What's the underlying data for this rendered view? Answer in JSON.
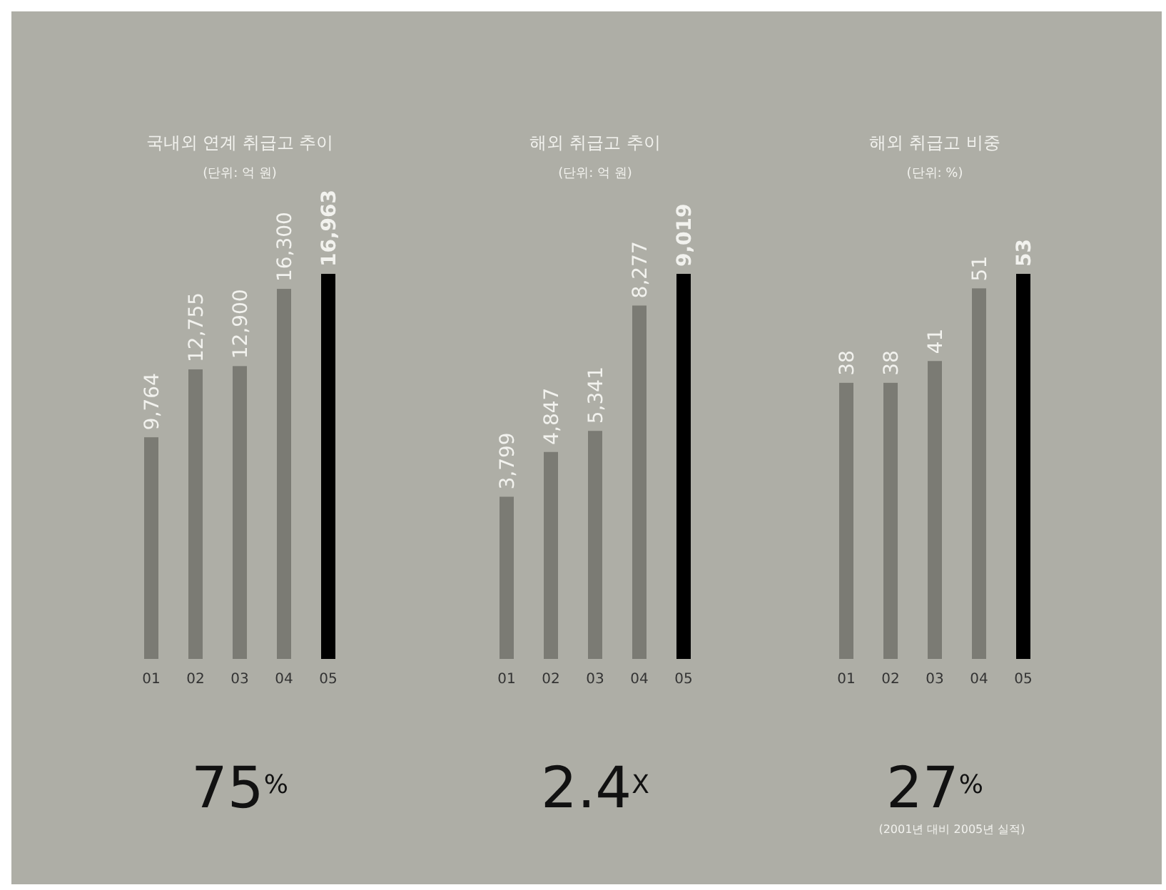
{
  "chart_data": [
    {
      "type": "bar",
      "title": "국내외 연계 취급고 추이",
      "subtitle": "(단위: 억 원)",
      "categories": [
        "01",
        "02",
        "03",
        "04",
        "05"
      ],
      "values": [
        9764,
        12755,
        12900,
        16300,
        16963
      ],
      "colors": [
        "#7b7b74",
        "#7b7b74",
        "#7b7b74",
        "#7b7b74",
        "#000000"
      ],
      "value_labels": [
        "9,764",
        "12,755",
        "12,900",
        "16,300",
        "16,963"
      ],
      "annotations": [
        "75$^{%}$"
      ]
    },
    {
      "type": "bar",
      "title": "해외 취급고 추이",
      "subtitle": "(단위: 억 원)",
      "categories": [
        "01",
        "02",
        "03",
        "04",
        "05"
      ],
      "values": [
        3799,
        4847,
        5341,
        8277,
        9019
      ],
      "colors": [
        "#7b7b74",
        "#7b7b74",
        "#7b7b74",
        "#7b7b74",
        "#000000"
      ],
      "value_labels": [
        "3,799",
        "4,847",
        "5,341",
        "8,277",
        "9,019"
      ],
      "annotations": [
        "2.4$^{X}$"
      ]
    },
    {
      "type": "bar",
      "title": "해외 취급고 비중",
      "subtitle": "(단위: %)",
      "categories": [
        "01",
        "02",
        "03",
        "04",
        "05"
      ],
      "values": [
        38,
        38,
        41,
        51,
        53
      ],
      "colors": [
        "#7b7b74",
        "#7b7b74",
        "#7b7b74",
        "#7b7b74",
        "#000000"
      ],
      "data_labels": true,
      "annotations": [
        "27$^{%}$",
        "(2001년 대비 2005년 실적)"
      ]
    }
  ]
}
